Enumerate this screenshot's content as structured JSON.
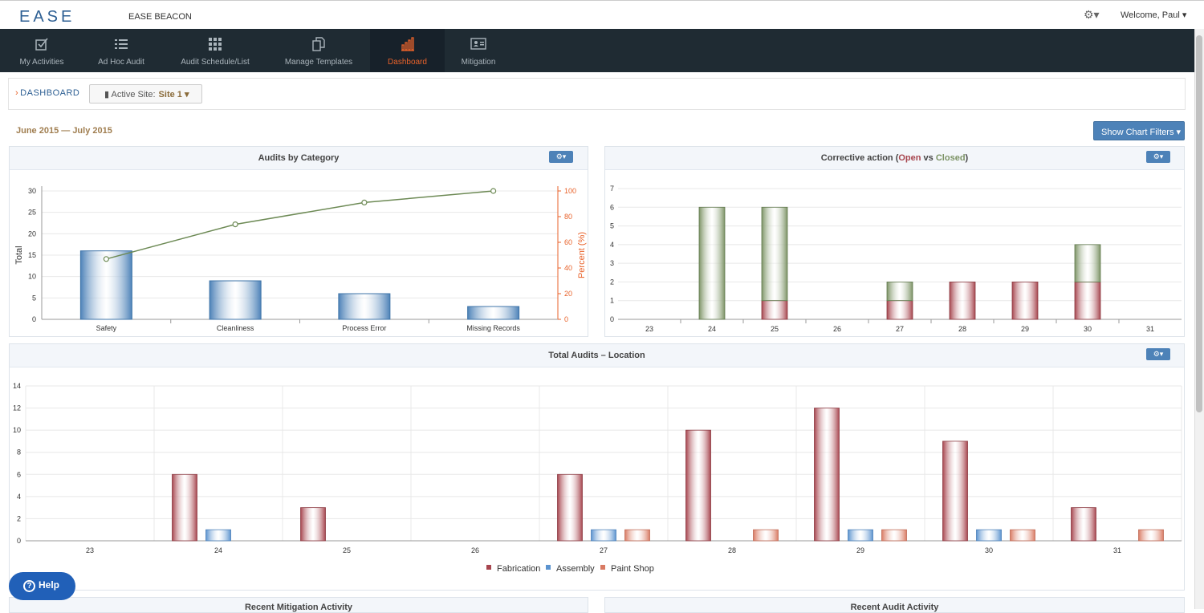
{
  "app": {
    "logo": "EASE",
    "name": "EASE BEACON",
    "welcome": "Welcome, Paul ▾",
    "gear": "⚙▾"
  },
  "nav": [
    {
      "label": "My Activities",
      "icon": "checkbox-icon",
      "active": false
    },
    {
      "label": "Ad Hoc Audit",
      "icon": "list-icon",
      "active": false
    },
    {
      "label": "Audit Schedule/List",
      "icon": "grid-icon",
      "active": false
    },
    {
      "label": "Manage Templates",
      "icon": "documents-icon",
      "active": false
    },
    {
      "label": "Dashboard",
      "icon": "bar-chart-icon",
      "active": true
    },
    {
      "label": "Mitigation",
      "icon": "id-card-icon",
      "active": false
    }
  ],
  "breadcrumb": {
    "label": "DASHBOARD",
    "active_site_label": "Active Site:",
    "active_site_value": "Site 1 ▾"
  },
  "date_range": "June 2015 — July 2015",
  "filter_button": "Show Chart Filters  ▾",
  "panels": {
    "audits_by_category": "Audits by Category",
    "corrective_action": {
      "prefix": "Corrective action (",
      "open": "Open",
      "mid": " vs ",
      "closed": "Closed",
      "suffix": ")"
    },
    "total_audits": "Total Audits – Location",
    "recent_mitigation": "Recent Mitigation Activity",
    "recent_audit": "Recent Audit Activity",
    "gear_label": "⚙▾"
  },
  "help": {
    "label": "Help",
    "icon": "?"
  },
  "colors": {
    "nav_bg": "#1f2b33",
    "accent": "#e8622a",
    "primary": "#4d82b8",
    "fabrication": "#a7454e",
    "assembly": "#5b93cf",
    "paint_shop": "#d97a63",
    "closed": "#7c9365",
    "open": "#a7454e",
    "pareto_line": "#6d8a55"
  },
  "chart_data": [
    {
      "type": "bar",
      "title": "Audits by Category",
      "categories": [
        "Safety",
        "Cleanliness",
        "Process Error",
        "Missing Records"
      ],
      "series": [
        {
          "name": "Total",
          "values": [
            16,
            9,
            6,
            3
          ]
        }
      ],
      "line": {
        "name": "Percent (%)",
        "values": [
          47,
          74,
          91,
          100
        ]
      },
      "ylabel": "Total",
      "y2label": "Percent (%)",
      "ylim": [
        0,
        30
      ],
      "y2lim": [
        0,
        100
      ],
      "yticks": [
        0,
        5,
        10,
        15,
        20,
        25,
        30
      ],
      "y2ticks": [
        0,
        20,
        40,
        60,
        80,
        100
      ]
    },
    {
      "type": "bar",
      "stacked": true,
      "title": "Corrective action (Open vs Closed)",
      "categories": [
        "23",
        "24",
        "25",
        "26",
        "27",
        "28",
        "29",
        "30",
        "31"
      ],
      "series": [
        {
          "name": "Open",
          "values": [
            0,
            0,
            1,
            0,
            1,
            2,
            2,
            2,
            0
          ]
        },
        {
          "name": "Closed",
          "values": [
            0,
            6,
            5,
            0,
            1,
            0,
            0,
            2,
            0
          ]
        }
      ],
      "ylim": [
        0,
        7
      ],
      "yticks": [
        0,
        1,
        2,
        3,
        4,
        5,
        6,
        7
      ]
    },
    {
      "type": "bar",
      "title": "Total Audits – Location",
      "categories": [
        "23",
        "24",
        "25",
        "26",
        "27",
        "28",
        "29",
        "30",
        "31"
      ],
      "series": [
        {
          "name": "Fabrication",
          "values": [
            0,
            6,
            3,
            0,
            6,
            10,
            12,
            9,
            3
          ]
        },
        {
          "name": "Assembly",
          "values": [
            0,
            1,
            0,
            0,
            1,
            0,
            1,
            1,
            0
          ]
        },
        {
          "name": "Paint Shop",
          "values": [
            0,
            0,
            0,
            0,
            1,
            1,
            1,
            1,
            1
          ]
        }
      ],
      "ylim": [
        0,
        14
      ],
      "yticks": [
        0,
        2,
        4,
        6,
        8,
        10,
        12,
        14
      ],
      "legend": "bottom-center"
    }
  ]
}
